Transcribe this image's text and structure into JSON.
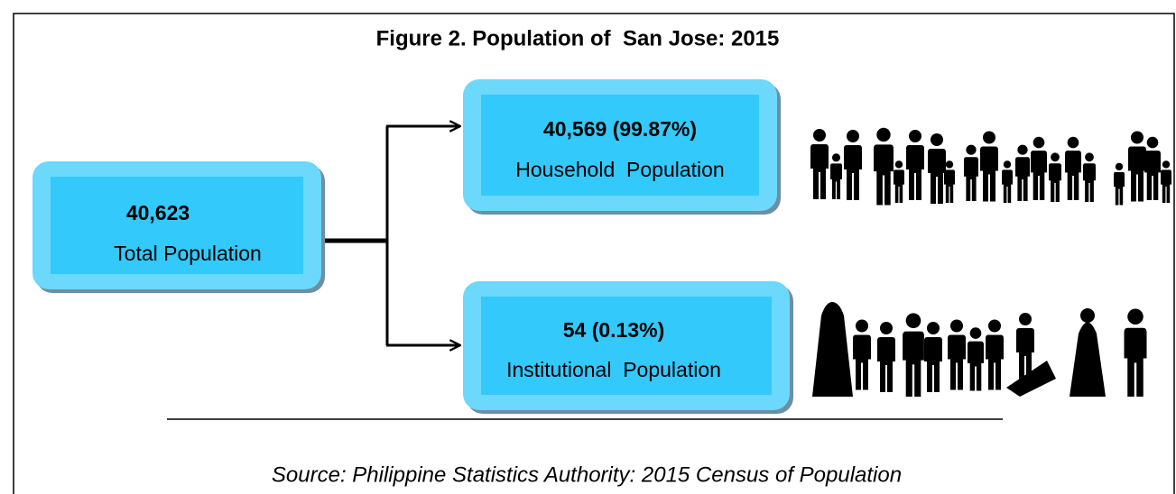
{
  "title": "Figure 2. Population of  San Jose: 2015",
  "nodes": [
    {
      "value": "40,623",
      "label": "Total Population"
    },
    {
      "value": "40,569 (99.87%)",
      "label": "Household  Population"
    },
    {
      "value": "54 (0.13%)",
      "label": "Institutional  Population"
    }
  ],
  "source": "Source: Philippine Statistics Authority: 2015 Census of Population"
}
